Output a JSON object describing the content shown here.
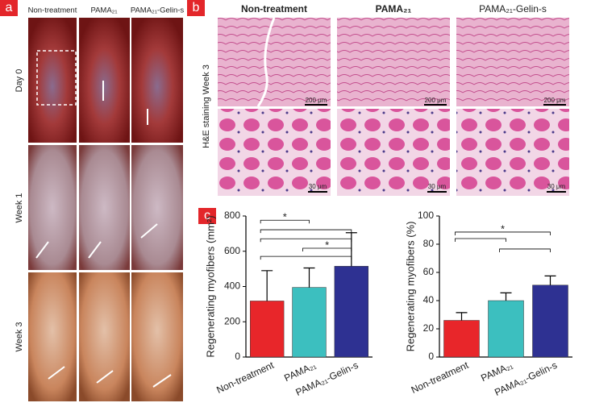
{
  "panel_a": {
    "label": "a",
    "columns": [
      "Non-treatment",
      "PAMA₂₁",
      "PAMA₂₁-Gelin-s"
    ],
    "rows": [
      "Day 0",
      "Week 1",
      "Week 3"
    ]
  },
  "panel_b": {
    "label": "b",
    "columns": [
      "Non-treatment",
      "PAMA₂₁",
      "PAMA₂₁-Gelin-s"
    ],
    "row_label": "H&E staining Week 3",
    "scale_top": [
      "200 μm",
      "200 μm",
      "200 μm"
    ],
    "scale_bottom": [
      "30 μm",
      "30 μm",
      "30 μm"
    ]
  },
  "panel_c": {
    "label": "c"
  },
  "chart_data": [
    {
      "type": "bar",
      "y_label": "Regenerating myofibers (mm²)",
      "categories": [
        "Non-treatment",
        "PAMA₂₁",
        "PAMA₂₁-Gelin-s"
      ],
      "values": [
        318,
        395,
        515
      ],
      "errors": [
        172,
        110,
        190
      ],
      "colors": [
        "#e8262a",
        "#3cbfbf",
        "#2e3192"
      ],
      "ylim": [
        0,
        800
      ],
      "yticks": [
        0,
        200,
        400,
        600,
        800
      ],
      "brackets": [
        {
          "from": 0,
          "to": 1,
          "y": 776,
          "label": "*"
        },
        {
          "from": 0,
          "to": 2,
          "y": 722
        },
        {
          "from": 0,
          "to": 2,
          "y": 671
        },
        {
          "from": 1,
          "to": 2,
          "y": 617,
          "label": "*"
        },
        {
          "from": 0,
          "to": 2,
          "y": 571
        }
      ]
    },
    {
      "type": "bar",
      "y_label": "Regenerating myofibers (%)",
      "categories": [
        "Non-treatment",
        "PAMA₂₁",
        "PAMA₂₁-Gelin-s"
      ],
      "values": [
        26,
        40,
        51
      ],
      "errors": [
        5.5,
        5.5,
        6.5
      ],
      "colors": [
        "#e8262a",
        "#3cbfbf",
        "#2e3192"
      ],
      "ylim": [
        0,
        100
      ],
      "yticks": [
        0,
        20,
        40,
        60,
        80,
        100
      ],
      "brackets": [
        {
          "from": 0,
          "to": 2,
          "y": 88.6,
          "label": "*"
        },
        {
          "from": 0,
          "to": 1,
          "y": 84
        },
        {
          "from": 1,
          "to": 2,
          "y": 76.6
        }
      ]
    }
  ]
}
